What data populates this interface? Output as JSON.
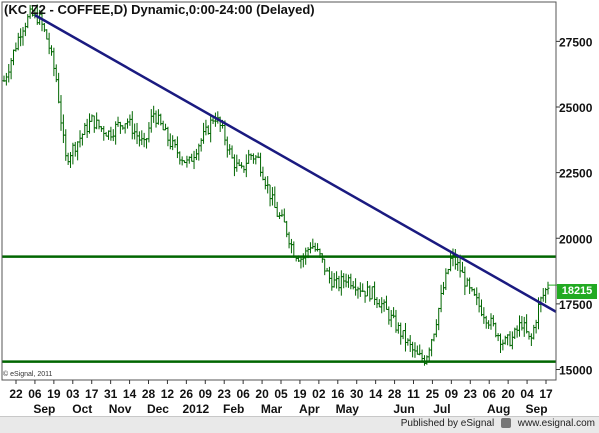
{
  "header": {
    "title": "(KC Z2 - COFFEE,D) Dynamic,0:00-24:00 (Delayed)"
  },
  "watermark": "© eSignal, 2011",
  "footer": {
    "published": "Published by eSignal",
    "url": "www.esignal.com"
  },
  "last_price": "18215",
  "colors": {
    "bars": "#006600",
    "trendline": "#1a1a80",
    "support": "#006600",
    "badge": "#22aa22"
  },
  "chart_data": {
    "type": "ohlc",
    "title": "(KC Z2 - COFFEE,D) Dynamic,0:00-24:00 (Delayed)",
    "y_ticks": [
      15000,
      17500,
      20000,
      22500,
      25000,
      27500
    ],
    "ylim": [
      14600,
      29000
    ],
    "x_tick_labels": [
      "22",
      "06",
      "19",
      "03",
      "17",
      "31",
      "14",
      "28",
      "12",
      "26",
      "09",
      "23",
      "06",
      "20",
      "05",
      "19",
      "02",
      "16",
      "30",
      "14",
      "28",
      "11",
      "25",
      "09",
      "23",
      "06",
      "20",
      "04",
      "17"
    ],
    "month_labels": [
      "Sep",
      "Oct",
      "Nov",
      "Dec",
      "2012",
      "Feb",
      "Mar",
      "Apr",
      "May",
      "Jun",
      "Jul",
      "Aug",
      "Sep"
    ],
    "month_label_index": [
      1,
      3,
      5,
      7,
      9,
      11,
      13,
      15,
      17,
      20,
      22,
      25,
      27
    ],
    "last_price": 18215,
    "horizontal_lines": [
      19300,
      15300
    ],
    "trendline": {
      "start": [
        "2011-09-06",
        28500
      ],
      "end": [
        "2012-09-17",
        17200
      ]
    },
    "closes": [
      26000,
      27000,
      28000,
      28500,
      28400,
      27500,
      26000,
      23000,
      23500,
      24000,
      24500,
      24200,
      24000,
      24300,
      24500,
      24000,
      23500,
      24800,
      24200,
      23600,
      23200,
      22800,
      23500,
      24000,
      24700,
      24000,
      23000,
      22500,
      23200,
      23000,
      22000,
      21000,
      20500,
      19500,
      19200,
      19800,
      19300,
      18500,
      18200,
      18500,
      18300,
      18000,
      17900,
      17500,
      17000,
      16500,
      16000,
      15500,
      15400,
      16500,
      18000,
      19300,
      18800,
      18000,
      17500,
      17000,
      16500,
      16000,
      16200,
      16800,
      16000,
      17500,
      18200
    ]
  }
}
